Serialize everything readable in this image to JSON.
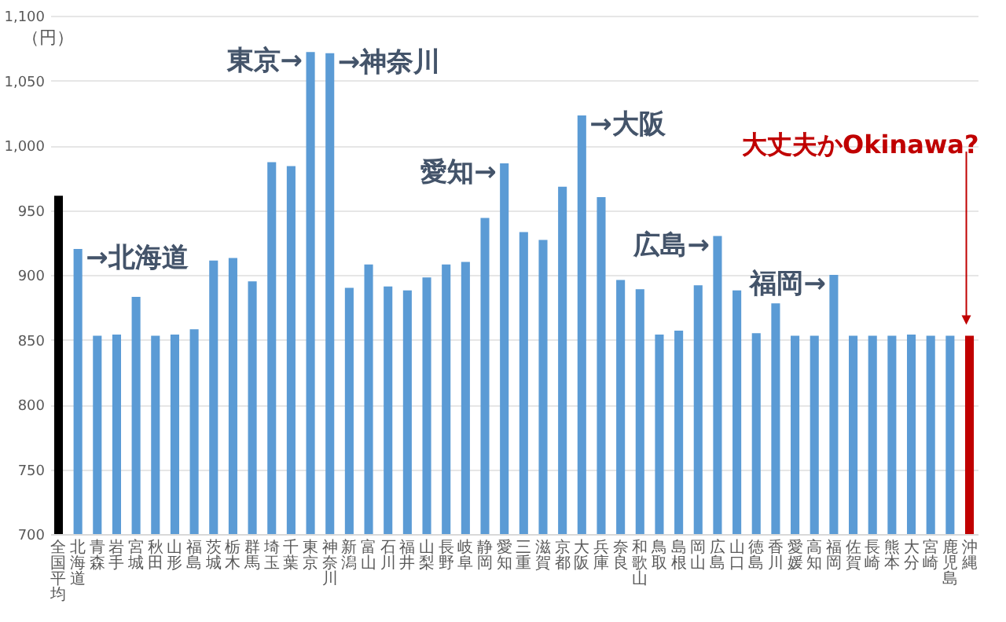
{
  "chart_data": {
    "type": "bar",
    "ylabel": "（円）",
    "categories": [
      "全国平均",
      "北海道",
      "青森",
      "岩手",
      "宮城",
      "秋田",
      "山形",
      "福島",
      "茨城",
      "栃木",
      "群馬",
      "埼玉",
      "千葉",
      "東京",
      "神奈川",
      "新潟",
      "富山",
      "石川",
      "福井",
      "山梨",
      "長野",
      "岐阜",
      "静岡",
      "愛知",
      "三重",
      "滋賀",
      "京都",
      "大阪",
      "兵庫",
      "奈良",
      "和歌山",
      "鳥取",
      "島根",
      "岡山",
      "広島",
      "山口",
      "徳島",
      "香川",
      "愛媛",
      "高知",
      "福岡",
      "佐賀",
      "長崎",
      "熊本",
      "大分",
      "宮崎",
      "鹿児島",
      "沖縄"
    ],
    "values": [
      961,
      920,
      853,
      854,
      883,
      853,
      854,
      858,
      911,
      913,
      895,
      987,
      984,
      1072,
      1071,
      890,
      908,
      891,
      888,
      898,
      908,
      910,
      944,
      986,
      933,
      927,
      968,
      1023,
      960,
      896,
      889,
      854,
      857,
      892,
      930,
      888,
      855,
      878,
      853,
      853,
      900,
      853,
      853,
      853,
      854,
      853,
      853,
      853
    ],
    "colors": [
      "#000000",
      "#5b9bd5",
      "#5b9bd5",
      "#5b9bd5",
      "#5b9bd5",
      "#5b9bd5",
      "#5b9bd5",
      "#5b9bd5",
      "#5b9bd5",
      "#5b9bd5",
      "#5b9bd5",
      "#5b9bd5",
      "#5b9bd5",
      "#5b9bd5",
      "#5b9bd5",
      "#5b9bd5",
      "#5b9bd5",
      "#5b9bd5",
      "#5b9bd5",
      "#5b9bd5",
      "#5b9bd5",
      "#5b9bd5",
      "#5b9bd5",
      "#5b9bd5",
      "#5b9bd5",
      "#5b9bd5",
      "#5b9bd5",
      "#5b9bd5",
      "#5b9bd5",
      "#5b9bd5",
      "#5b9bd5",
      "#5b9bd5",
      "#5b9bd5",
      "#5b9bd5",
      "#5b9bd5",
      "#5b9bd5",
      "#5b9bd5",
      "#5b9bd5",
      "#5b9bd5",
      "#5b9bd5",
      "#5b9bd5",
      "#5b9bd5",
      "#5b9bd5",
      "#5b9bd5",
      "#5b9bd5",
      "#5b9bd5",
      "#5b9bd5",
      "#c00000"
    ],
    "ylim": [
      700,
      1100
    ],
    "yticks": [
      700,
      750,
      800,
      850,
      900,
      950,
      {
        "value": 1000,
        "label": "1,000"
      },
      {
        "value": 1050,
        "label": "1,050"
      },
      {
        "value": 1100,
        "label": "1,100"
      }
    ],
    "grid": "y",
    "annotations": [
      {
        "text": "→北海道",
        "x": "北海道",
        "y": 920
      },
      {
        "text": "東京→",
        "x": "東京",
        "y": 1072
      },
      {
        "text": "→神奈川",
        "x": "神奈川",
        "y": 1071
      },
      {
        "text": "愛知→",
        "x": "愛知",
        "y": 986
      },
      {
        "text": "→大阪",
        "x": "大阪",
        "y": 1023
      },
      {
        "text": "広島→",
        "x": "広島",
        "y": 930
      },
      {
        "text": "福岡→",
        "x": "福岡",
        "y": 900
      },
      "大丈夫かOkinawa?"
    ]
  }
}
